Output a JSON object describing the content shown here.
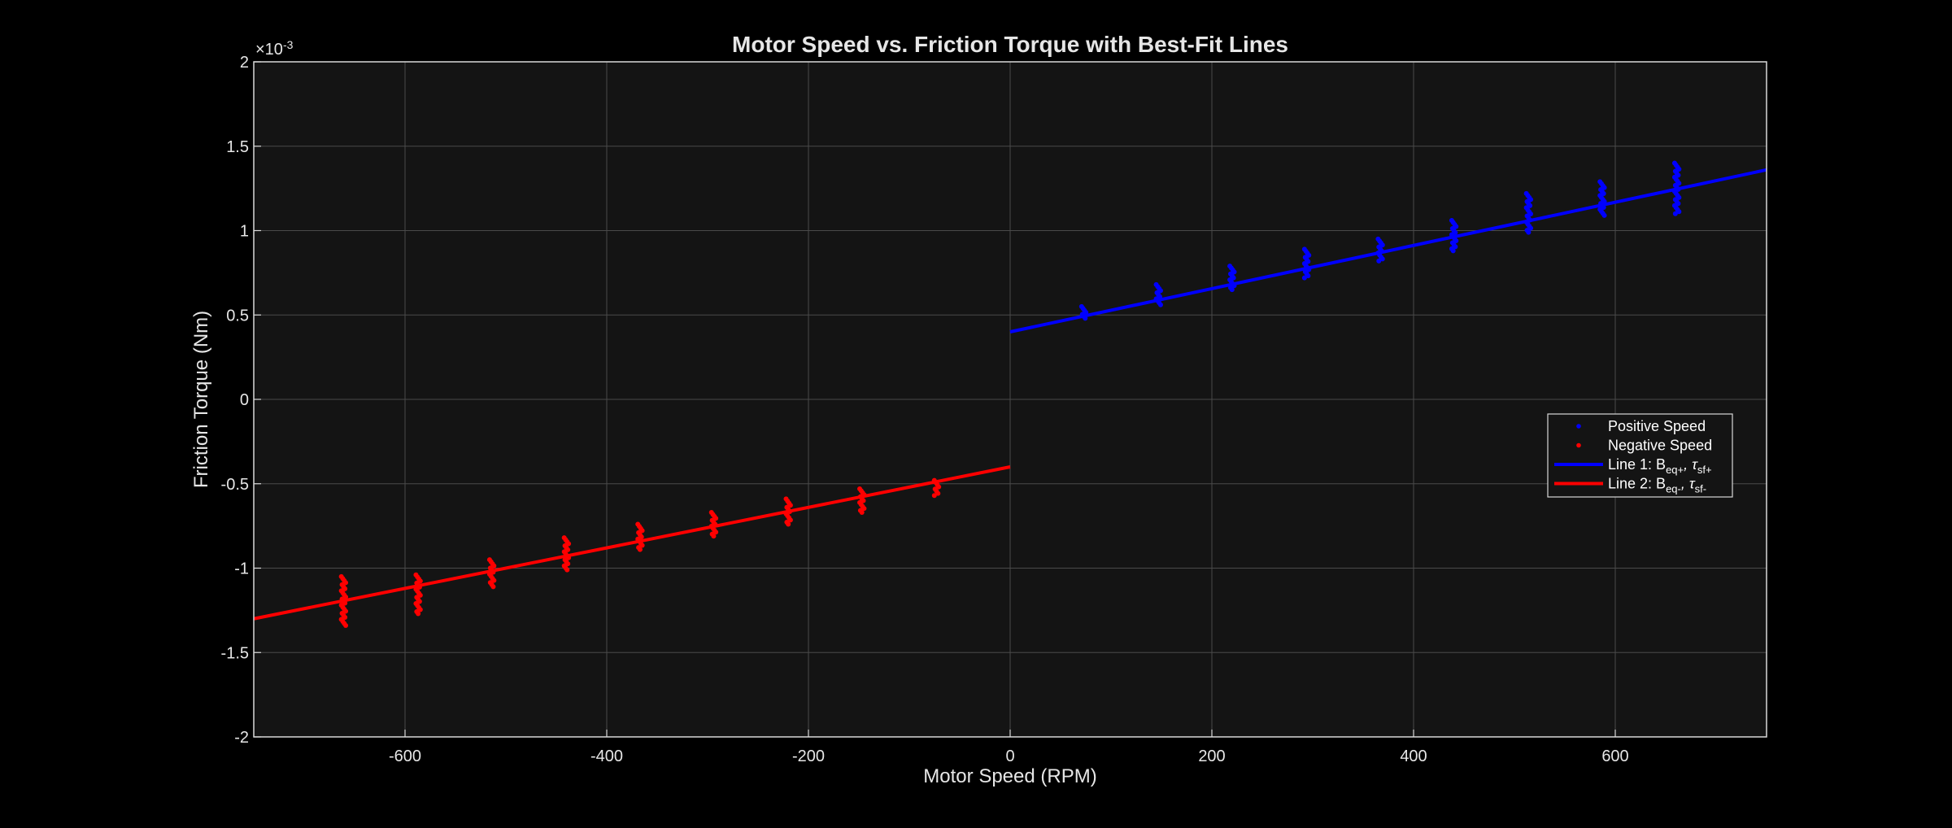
{
  "chart_data": {
    "type": "scatter",
    "title": "Motor Speed vs. Friction Torque with Best-Fit Lines",
    "xlabel": "Motor Speed (RPM)",
    "ylabel": "Friction Torque (Nm)",
    "exponent_label": "×10",
    "exponent_power": "-3",
    "xlim": [
      -750,
      750
    ],
    "ylim": [
      -2,
      2
    ],
    "y_scale_factor": 0.001,
    "xticks": [
      -600,
      -400,
      -200,
      0,
      200,
      400,
      600
    ],
    "yticks": [
      -2,
      -1.5,
      -1,
      -0.5,
      0,
      0.5,
      1,
      1.5,
      2
    ],
    "xtick_labels": [
      "-600",
      "-400",
      "-200",
      "0",
      "200",
      "400",
      "600"
    ],
    "ytick_labels": [
      "-2",
      "-1.5",
      "-1",
      "-0.5",
      "0",
      "0.5",
      "1",
      "1.5",
      "2"
    ],
    "grid": true,
    "legend_position": "right",
    "colors": {
      "background": "#000000",
      "plot_area": "#141414",
      "grid": "#4a4a4a",
      "axis": "#d9d9d9",
      "text": "#e6e6e6",
      "positive": "#0000ff",
      "negative": "#ff0000"
    },
    "scatter_series": [
      {
        "name": "Positive Speed",
        "color": "#0000ff",
        "clusters": [
          {
            "x": 73,
            "y_min": 0.48,
            "y_max": 0.55
          },
          {
            "x": 147,
            "y_min": 0.56,
            "y_max": 0.68
          },
          {
            "x": 220,
            "y_min": 0.65,
            "y_max": 0.79
          },
          {
            "x": 294,
            "y_min": 0.72,
            "y_max": 0.89
          },
          {
            "x": 367,
            "y_min": 0.82,
            "y_max": 0.95
          },
          {
            "x": 440,
            "y_min": 0.88,
            "y_max": 1.06
          },
          {
            "x": 514,
            "y_min": 0.99,
            "y_max": 1.22
          },
          {
            "x": 587,
            "y_min": 1.09,
            "y_max": 1.29
          },
          {
            "x": 661,
            "y_min": 1.1,
            "y_max": 1.4
          }
        ]
      },
      {
        "name": "Negative Speed",
        "color": "#ff0000",
        "clusters": [
          {
            "x": -73,
            "y_min": -0.57,
            "y_max": -0.48
          },
          {
            "x": -147,
            "y_min": -0.67,
            "y_max": -0.53
          },
          {
            "x": -220,
            "y_min": -0.74,
            "y_max": -0.59
          },
          {
            "x": -294,
            "y_min": -0.81,
            "y_max": -0.67
          },
          {
            "x": -367,
            "y_min": -0.89,
            "y_max": -0.74
          },
          {
            "x": -440,
            "y_min": -1.01,
            "y_max": -0.82
          },
          {
            "x": -514,
            "y_min": -1.11,
            "y_max": -0.95
          },
          {
            "x": -587,
            "y_min": -1.27,
            "y_max": -1.04
          },
          {
            "x": -661,
            "y_min": -1.34,
            "y_max": -1.05
          }
        ]
      }
    ],
    "fit_lines": [
      {
        "name": "Line 1",
        "color": "#0000ff",
        "x": [
          0,
          750
        ],
        "y": [
          0.4,
          1.36
        ]
      },
      {
        "name": "Line 2",
        "color": "#ff0000",
        "x": [
          -750,
          0
        ],
        "y": [
          -1.3,
          -0.4
        ]
      }
    ],
    "legend": [
      {
        "kind": "point",
        "color": "#0000ff",
        "label": "Positive Speed"
      },
      {
        "kind": "point",
        "color": "#ff0000",
        "label": "Negative Speed"
      },
      {
        "kind": "line",
        "color": "#0000ff",
        "prefix": "Line  1:  B",
        "sub1": "eq+",
        "mid": ",  τ",
        "sub2": "sf+"
      },
      {
        "kind": "line",
        "color": "#ff0000",
        "prefix": "Line  2:  B",
        "sub1": "eq-",
        "mid": ",  τ",
        "sub2": "sf-"
      }
    ]
  }
}
